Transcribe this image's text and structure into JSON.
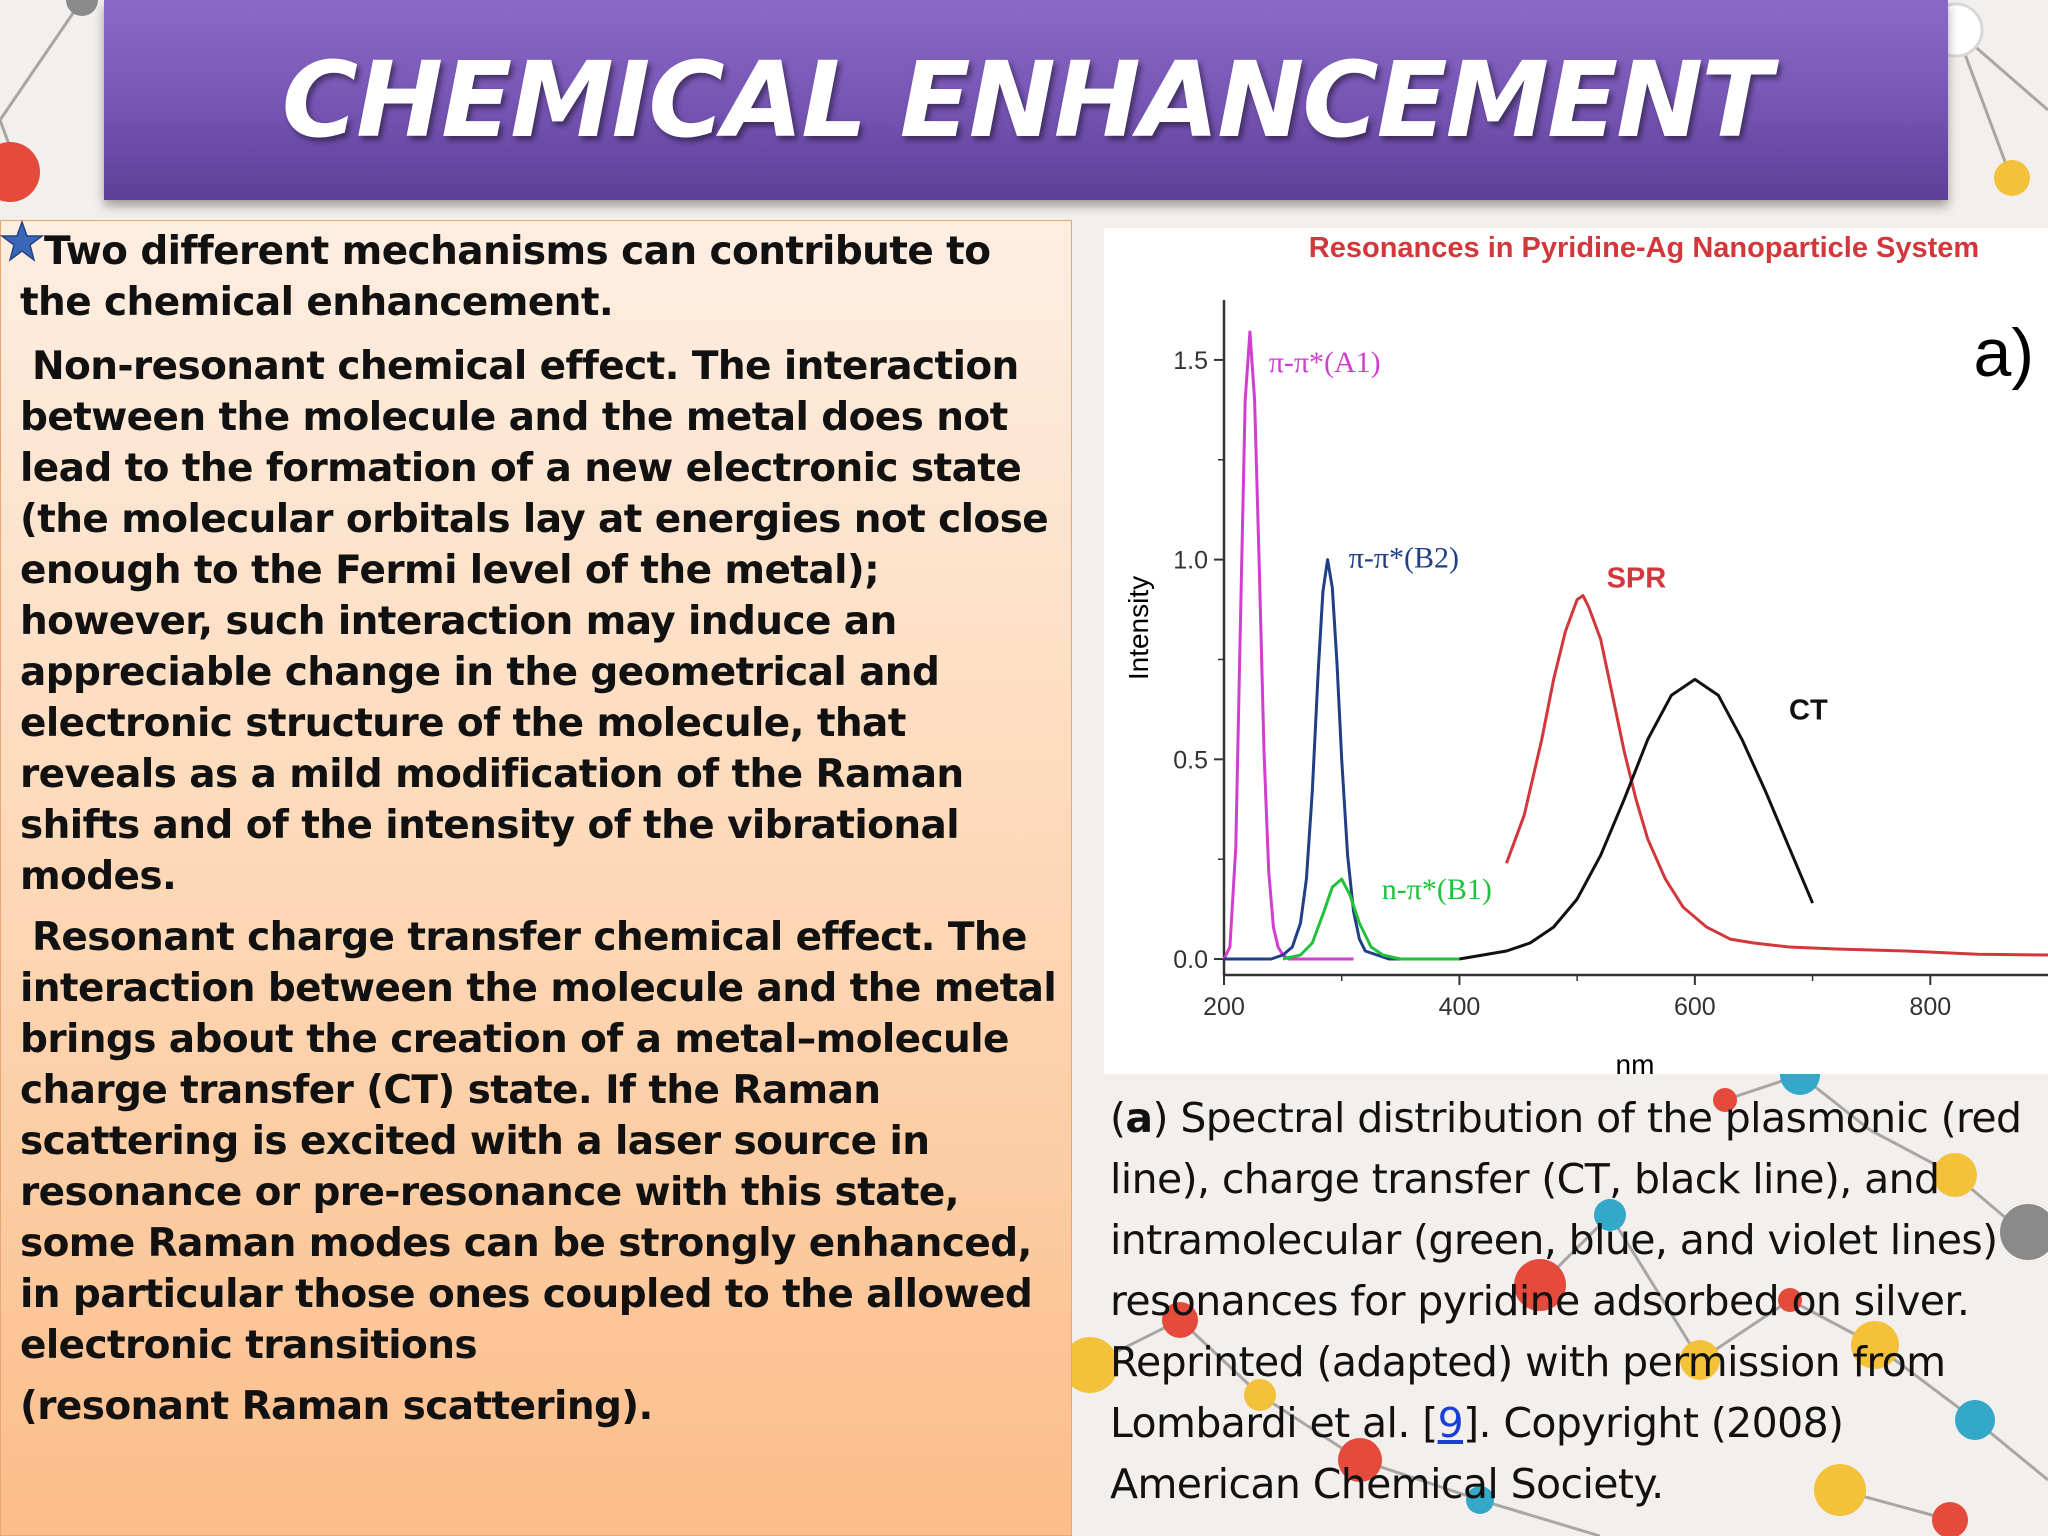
{
  "slide": {
    "title": "CHEMICAL ENHANCEMENT"
  },
  "left_text": {
    "intro": "Two different mechanisms can contribute to the chemical enhancement.",
    "nonresonant": "Non-resonant chemical effect. The interaction between the molecule and the metal does not lead to the formation of a new electronic state (the molecular orbitals lay at energies not close enough to the Fermi level of the metal); however, such interaction may induce an appreciable change in the geometrical and electronic structure of the molecule, that reveals as a mild modification of the Raman shifts and of the intensity of the vibrational modes.",
    "resonant": "Resonant charge transfer chemical effect. The interaction between the molecule and the metal brings about the creation of a metal–molecule charge transfer (CT) state. If the Raman scattering is excited with a laser source in resonance or pre-resonance with this state, some Raman modes can be strongly enhanced, in particular those ones coupled to the allowed electronic transitions",
    "resonant_tail": "(resonant Raman scattering)."
  },
  "caption": {
    "label": "a",
    "text_before_ref": ") Spectral distribution of the plasmonic (red line),  charge transfer (CT,  black line), and intramolecular (green, blue, and violet lines) resonances for pyridine adsorbed on silver. Reprinted (adapted) with permission from Lombardi et al. [",
    "ref": "9",
    "text_after_ref": "]. Copyright (2008) American Chemical Society."
  },
  "chart_data": {
    "type": "line",
    "title": "Resonances in Pyridine-Ag Nanoparticle System",
    "panel_label": "a)",
    "xlabel": "nm",
    "ylabel": "Intensity",
    "xlim": [
      200,
      900
    ],
    "ylim": [
      -0.04,
      1.65
    ],
    "xticks": [
      "200",
      "400",
      "600",
      "800"
    ],
    "yticks": [
      "0.0",
      "0.5",
      "1.0",
      "1.5"
    ],
    "xtick_values": [
      200,
      400,
      600,
      800
    ],
    "ytick_values": [
      0.0,
      0.5,
      1.0,
      1.5
    ],
    "grid": false,
    "colors": {
      "violet": "#d23fd0",
      "blue": "#1f3f86",
      "green": "#22c13c",
      "red": "#d2373b",
      "black": "#111111",
      "title": "#d2373b",
      "axis": "#333333"
    },
    "series": [
      {
        "id": "violet",
        "peak_label": "π-π*(A1)",
        "label_x": 238,
        "label_y": 1.47,
        "x": [
          200,
          205,
          210,
          214,
          218,
          222,
          226,
          230,
          234,
          238,
          242,
          246,
          250,
          255,
          260,
          268,
          278,
          290,
          300,
          310
        ],
        "y": [
          0.0,
          0.03,
          0.28,
          0.85,
          1.4,
          1.57,
          1.4,
          0.98,
          0.52,
          0.22,
          0.08,
          0.03,
          0.01,
          0.0,
          0.0,
          0.0,
          0.0,
          0.0,
          0.0,
          0.0
        ]
      },
      {
        "id": "blue",
        "peak_label": "π-π*(B2)",
        "label_x": 306,
        "label_y": 0.98,
        "x": [
          200,
          240,
          250,
          258,
          265,
          270,
          275,
          280,
          284,
          288,
          292,
          296,
          300,
          305,
          310,
          315,
          320,
          330,
          340,
          360,
          380,
          400
        ],
        "y": [
          0.0,
          0.0,
          0.01,
          0.03,
          0.09,
          0.2,
          0.42,
          0.72,
          0.92,
          1.0,
          0.93,
          0.74,
          0.5,
          0.26,
          0.12,
          0.05,
          0.02,
          0.01,
          0.0,
          0.0,
          0.0,
          0.0
        ]
      },
      {
        "id": "green",
        "peak_label": "n-π*(B1)",
        "label_x": 334,
        "label_y": 0.15,
        "x": [
          250,
          265,
          275,
          285,
          292,
          300,
          307,
          315,
          325,
          335,
          350,
          370,
          400
        ],
        "y": [
          0.0,
          0.01,
          0.04,
          0.12,
          0.18,
          0.2,
          0.16,
          0.09,
          0.03,
          0.01,
          0.0,
          0.0,
          0.0
        ]
      },
      {
        "id": "red",
        "peak_label": "SPR",
        "label_x": 525,
        "label_y": 0.93,
        "x": [
          440,
          455,
          470,
          480,
          490,
          500,
          505,
          510,
          520,
          530,
          540,
          550,
          560,
          575,
          590,
          610,
          630,
          650,
          680,
          720,
          780,
          840,
          900
        ],
        "y": [
          0.24,
          0.36,
          0.55,
          0.7,
          0.82,
          0.9,
          0.91,
          0.88,
          0.8,
          0.66,
          0.52,
          0.4,
          0.3,
          0.2,
          0.13,
          0.08,
          0.05,
          0.04,
          0.03,
          0.025,
          0.02,
          0.012,
          0.01
        ]
      },
      {
        "id": "black",
        "peak_label": "CT",
        "label_x": 680,
        "label_y": 0.6,
        "x": [
          400,
          420,
          440,
          460,
          480,
          500,
          520,
          540,
          560,
          580,
          600,
          620,
          640,
          660,
          680,
          700
        ],
        "y": [
          0.0,
          0.01,
          0.02,
          0.04,
          0.08,
          0.15,
          0.26,
          0.4,
          0.55,
          0.66,
          0.7,
          0.66,
          0.55,
          0.42,
          0.28,
          0.14
        ]
      }
    ]
  }
}
